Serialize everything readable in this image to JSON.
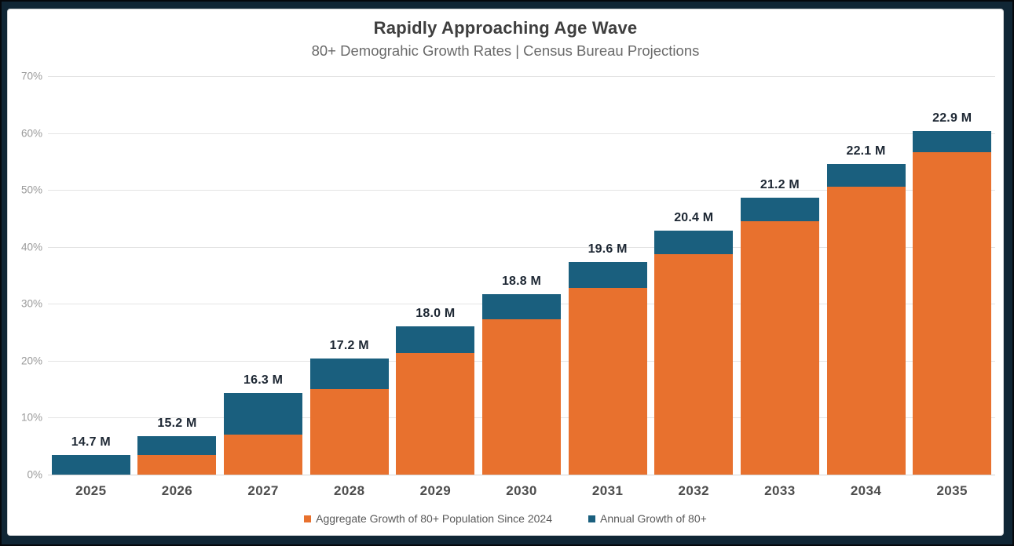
{
  "header": {
    "title": "Rapidly Approaching Age Wave",
    "subtitle": "80+ Demograhic Growth Rates | Census Bureau Projections"
  },
  "chart_data": {
    "type": "bar",
    "stacked": true,
    "title": "Rapidly Approaching Age Wave",
    "subtitle": "80+ Demograhic Growth Rates | Census Bureau Projections",
    "categories": [
      "2025",
      "2026",
      "2027",
      "2028",
      "2029",
      "2030",
      "2031",
      "2032",
      "2033",
      "2034",
      "2035"
    ],
    "series": [
      {
        "name": "Aggregate Growth of 80+ Population Since 2024",
        "color": "#E8712E",
        "values": [
          0,
          3.4,
          7.0,
          15.0,
          21.3,
          27.3,
          32.8,
          38.7,
          44.5,
          50.6,
          56.7
        ]
      },
      {
        "name": "Annual Growth of 80+",
        "color": "#1A5F7E",
        "values": [
          3.4,
          3.3,
          7.3,
          5.4,
          4.8,
          4.4,
          4.5,
          4.2,
          4.2,
          4.0,
          3.7
        ]
      }
    ],
    "totals_pct": [
      3.4,
      6.7,
      14.3,
      20.4,
      26.1,
      31.7,
      37.3,
      42.9,
      48.7,
      54.6,
      60.4
    ],
    "bar_labels": [
      "14.7 M",
      "15.2 M",
      "16.3 M",
      "17.2 M",
      "18.0 M",
      "18.8 M",
      "19.6 M",
      "20.4 M",
      "21.2 M",
      "22.1 M",
      "22.9 M"
    ],
    "population_millions": [
      14.7,
      15.2,
      16.3,
      17.2,
      18.0,
      18.8,
      19.6,
      20.4,
      21.2,
      22.1,
      22.9
    ],
    "xlabel": "",
    "ylabel": "",
    "ylim": [
      0,
      70
    ],
    "y_ticks": [
      "0%",
      "10%",
      "20%",
      "30%",
      "40%",
      "50%",
      "60%",
      "70%"
    ],
    "y_tick_values": [
      0,
      10,
      20,
      30,
      40,
      50,
      60,
      70
    ],
    "grid": true,
    "legend_position": "bottom"
  },
  "colors": {
    "aggregate_orange": "#E8712E",
    "annual_blue": "#1A5F7E",
    "frame_background": "#102635",
    "card_background": "#FFFFFF",
    "gridline": "#E4E4E4",
    "title_text": "#3E3E3E",
    "subtitle_text": "#6A6A6A",
    "y_axis_text": "#9A9A9A",
    "x_axis_text": "#4D4D4D",
    "value_label_text": "#1D2733",
    "legend_text": "#595959"
  }
}
